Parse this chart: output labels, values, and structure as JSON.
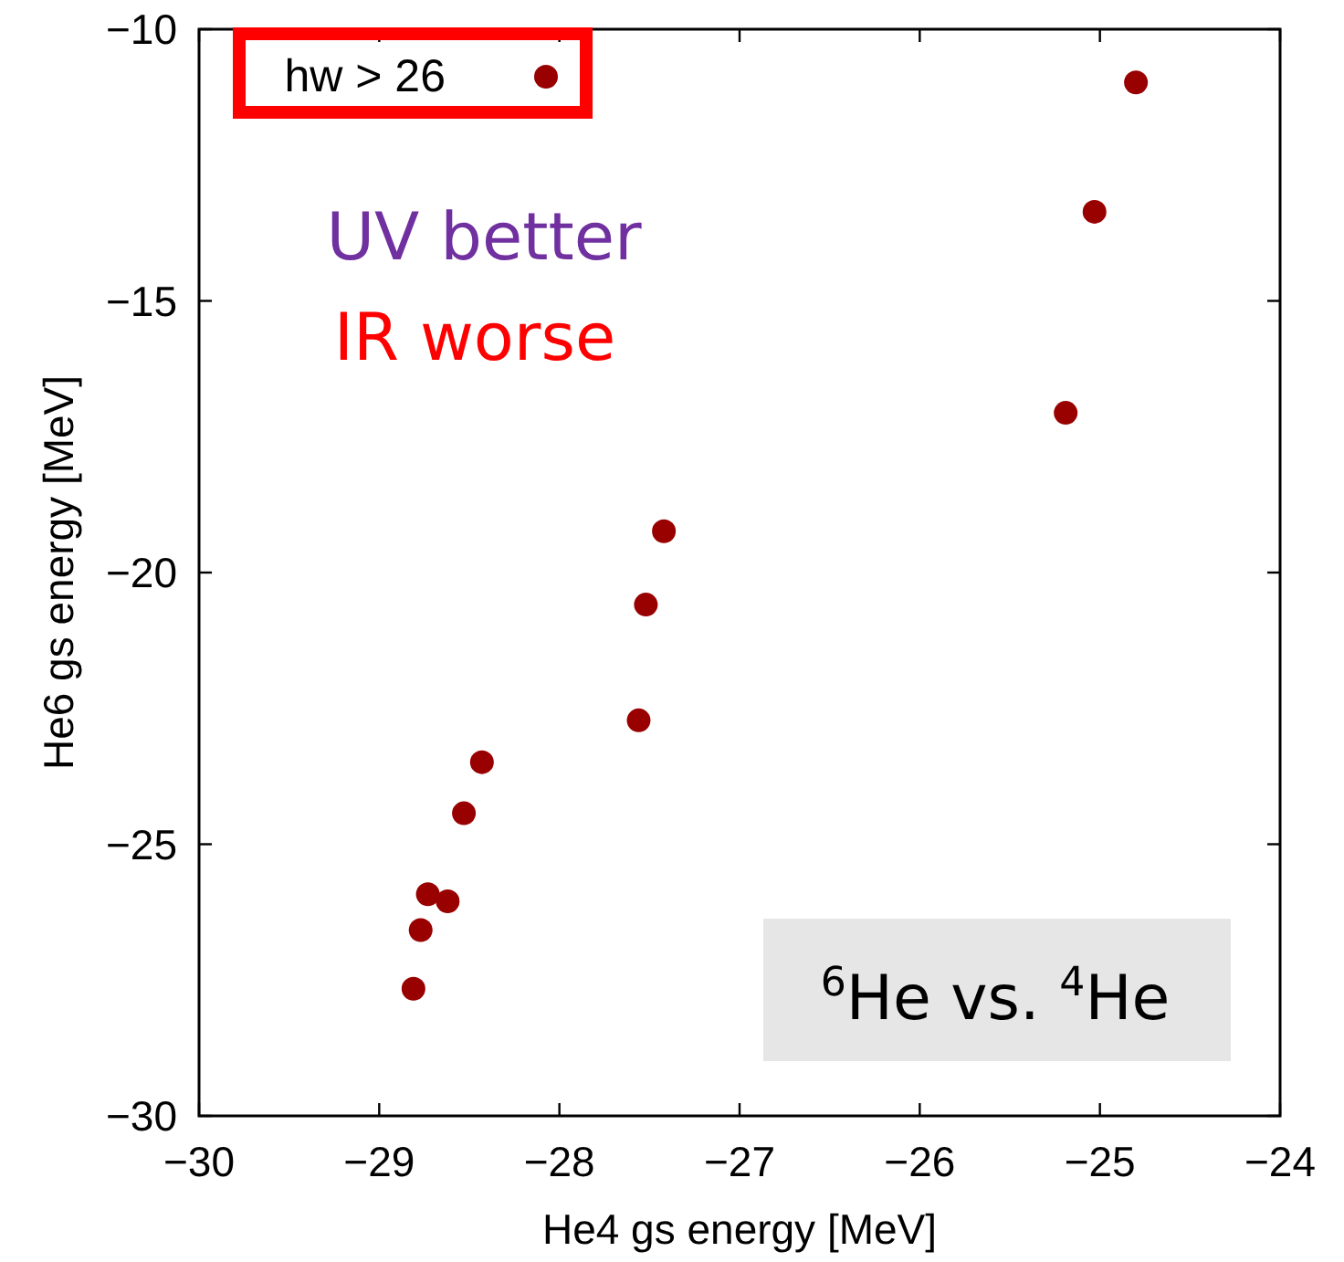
{
  "chart_data": {
    "type": "scatter",
    "xlabel": "He4 gs energy [MeV]",
    "ylabel": "He6 gs energy [MeV]",
    "x": [
      -24.8,
      -25.03,
      -25.19,
      -27.42,
      -27.52,
      -27.56,
      -28.43,
      -28.53,
      -28.73,
      -28.62,
      -28.77,
      -28.81
    ],
    "series": [
      {
        "name": "hw > 26",
        "color": "#990000",
        "values": [
          -10.98,
          -13.36,
          -17.06,
          -19.24,
          -20.59,
          -22.72,
          -23.49,
          -24.43,
          -25.92,
          -26.05,
          -26.58,
          -27.66
        ]
      }
    ],
    "xlim": [
      -30,
      -24
    ],
    "ylim": [
      -30,
      -10
    ],
    "xticks": [
      {
        "value": -30,
        "label": "−30"
      },
      {
        "value": -29,
        "label": "−29"
      },
      {
        "value": -28,
        "label": "−28"
      },
      {
        "value": -27,
        "label": "−27"
      },
      {
        "value": -26,
        "label": "−26"
      },
      {
        "value": -25,
        "label": "−25"
      },
      {
        "value": -24,
        "label": "−24"
      }
    ],
    "yticks": [
      {
        "value": -30,
        "label": "−30"
      },
      {
        "value": -25,
        "label": "−25"
      },
      {
        "value": -20,
        "label": "−20"
      },
      {
        "value": -15,
        "label": "−15"
      },
      {
        "value": -10,
        "label": "−10"
      }
    ],
    "grid": false,
    "legend": "top left",
    "marker": "circle",
    "annotations": [
      "UV better",
      "IR worse",
      "$^{6}$He vs. $^{4}$He"
    ]
  }
}
